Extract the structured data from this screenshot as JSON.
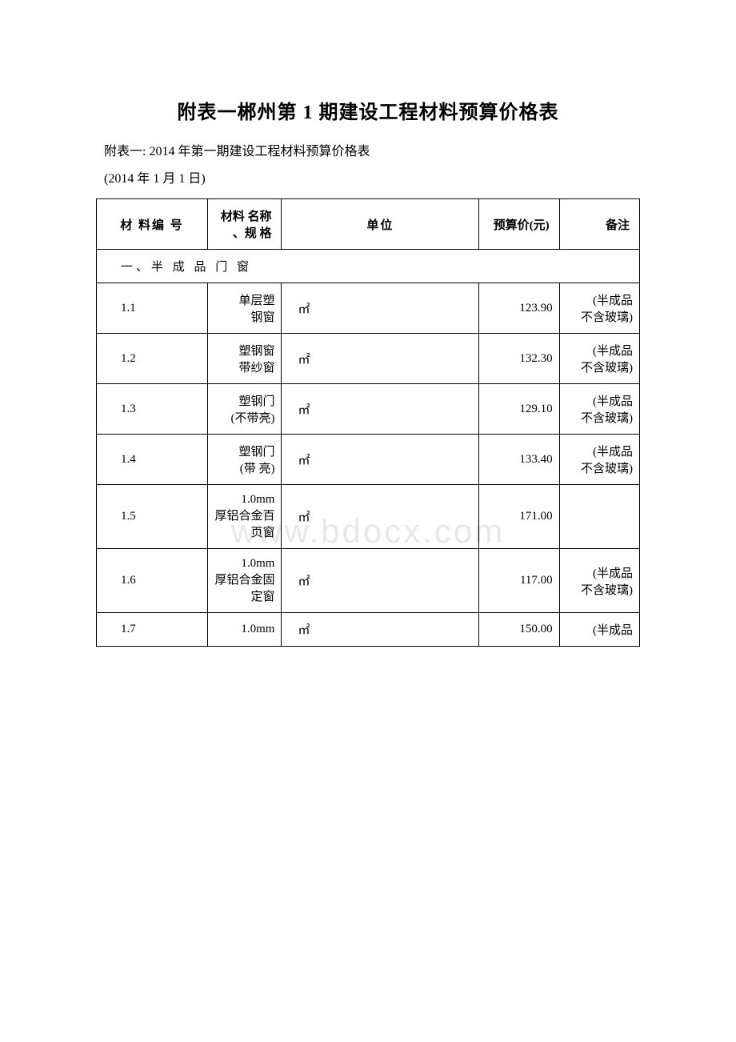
{
  "document": {
    "title": "附表一郴州第 1 期建设工程材料预算价格表",
    "subtitle": "附表一: 2014 年第一期建设工程材料预算价格表",
    "date": "(2014 年 1 月 1 日)",
    "watermark": "www.bdocx.com"
  },
  "table": {
    "headers": {
      "col1": "材 料编 号",
      "col2": "材料 名称 、规 格",
      "col3": "单位",
      "col4": "预算价(元)",
      "col5": "备注"
    },
    "section": "一、半 成 品 门 窗",
    "rows": [
      {
        "code": "1.1",
        "name": "单层塑钢窗",
        "unit": "㎡",
        "price": "123.90",
        "note": "(半成品不含玻璃)"
      },
      {
        "code": "1.2",
        "name": "塑钢窗带纱窗",
        "unit": "㎡",
        "price": "132.30",
        "note": "(半成品不含玻璃)"
      },
      {
        "code": "1.3",
        "name": "塑钢门 (不带亮)",
        "unit": "㎡",
        "price": "129.10",
        "note": "(半成品不含玻璃)"
      },
      {
        "code": "1.4",
        "name": "塑钢门 (带 亮)",
        "unit": "㎡",
        "price": "133.40",
        "note": "(半成品不含玻璃)"
      },
      {
        "code": "1.5",
        "name": "1.0mm厚铝合金百页窗",
        "unit": "㎡",
        "price": "171.00",
        "note": ""
      },
      {
        "code": "1.6",
        "name": "1.0mm厚铝合金固定窗",
        "unit": "㎡",
        "price": "117.00",
        "note": "(半成品不含玻璃)"
      },
      {
        "code": "1.7",
        "name": "1.0mm",
        "unit": "㎡",
        "price": "150.00",
        "note": "(半成品"
      }
    ]
  },
  "style": {
    "background_color": "#ffffff",
    "text_color": "#000000",
    "border_color": "#000000",
    "watermark_color": "#e8e8e8",
    "title_fontsize": 24,
    "body_fontsize": 15
  }
}
